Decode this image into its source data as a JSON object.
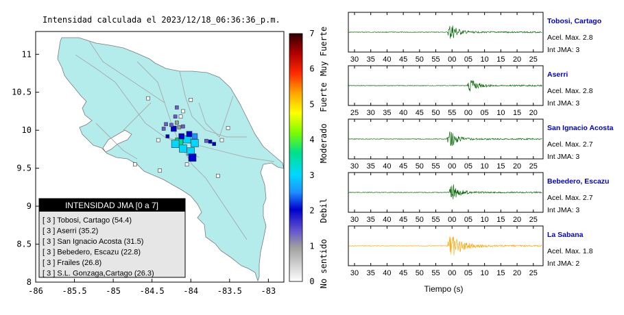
{
  "map": {
    "title": "Intensidad calculada el 2023/12/18_06:36:36_p.m.",
    "x_ticks": [
      "-86",
      "-85.5",
      "-85",
      "-84.5",
      "-84",
      "-83.5",
      "-83"
    ],
    "y_ticks": [
      "8",
      "8.5",
      "9",
      "9.5",
      "10",
      "10.5",
      "11"
    ],
    "xlim": [
      -86.0,
      -82.8
    ],
    "ylim": [
      8.0,
      11.3
    ],
    "legend": {
      "header": "INTENSIDAD JMA [0 a 7]",
      "entries": [
        "[ 3 ]  Tobosi, Cartago (54.4)",
        "[ 3 ]  Aserri (35.2)",
        "[ 3 ]  San Ignacio Acosta (31.5)",
        "[ 3 ]  Bebedero, Escazu (22.8)",
        "[ 3 ]  Frailes (26.8)",
        "[ 3 ]  S.L. Gonzaga,Cartago (26.3)"
      ]
    },
    "colorbar": {
      "ticks": [
        "0",
        "1",
        "2",
        "3",
        "4",
        "5",
        "6",
        "7"
      ],
      "labels": [
        {
          "text": "No sentido",
          "at": 0.5
        },
        {
          "text": "Debil",
          "at": 2.0
        },
        {
          "text": "Moderado",
          "at": 3.9
        },
        {
          "text": "Fuerte",
          "at": 5.2
        },
        {
          "text": "Muy Fuerte",
          "at": 6.5
        }
      ]
    },
    "land_color": "#b4ecec",
    "stations": [
      {
        "lon": -84.15,
        "lat": 9.85,
        "intensity": 3.6,
        "size": 2
      },
      {
        "lon": -84.05,
        "lat": 9.88,
        "intensity": 3.1,
        "size": 2
      },
      {
        "lon": -83.95,
        "lat": 9.83,
        "intensity": 3.3,
        "size": 2
      },
      {
        "lon": -84.1,
        "lat": 9.76,
        "intensity": 3.0,
        "size": 2
      },
      {
        "lon": -84.0,
        "lat": 9.72,
        "intensity": 3.4,
        "size": 2
      },
      {
        "lon": -83.98,
        "lat": 9.64,
        "intensity": 2.0,
        "size": 2
      },
      {
        "lon": -84.2,
        "lat": 9.82,
        "intensity": 3.2,
        "size": 2
      },
      {
        "lon": -84.22,
        "lat": 10.02,
        "intensity": 2.1,
        "size": 1
      },
      {
        "lon": -84.02,
        "lat": 9.95,
        "intensity": 2.1,
        "size": 1
      },
      {
        "lon": -84.12,
        "lat": 9.92,
        "intensity": 2.0,
        "size": 1
      },
      {
        "lon": -83.95,
        "lat": 9.92,
        "intensity": 2.5,
        "size": 1
      },
      {
        "lon": -84.3,
        "lat": 9.92,
        "intensity": 2.2,
        "size": 0
      },
      {
        "lon": -84.32,
        "lat": 10.08,
        "intensity": 1.6,
        "size": 0
      },
      {
        "lon": -84.35,
        "lat": 10.02,
        "intensity": 1.8,
        "size": 0
      },
      {
        "lon": -84.25,
        "lat": 10.07,
        "intensity": 1.5,
        "size": 0
      },
      {
        "lon": -84.18,
        "lat": 10.1,
        "intensity": 1.2,
        "size": 0
      },
      {
        "lon": -84.15,
        "lat": 10.04,
        "intensity": 1.3,
        "size": 0
      },
      {
        "lon": -84.1,
        "lat": 10.05,
        "intensity": 1.8,
        "size": 0
      },
      {
        "lon": -84.2,
        "lat": 10.18,
        "intensity": 1.7,
        "size": 0
      },
      {
        "lon": -84.13,
        "lat": 10.18,
        "intensity": 0.6,
        "size": 0
      },
      {
        "lon": -84.18,
        "lat": 10.3,
        "intensity": 1.9,
        "size": 0
      },
      {
        "lon": -84.1,
        "lat": 10.25,
        "intensity": 0.5,
        "size": 0
      },
      {
        "lon": -84.0,
        "lat": 10.4,
        "intensity": 0.4,
        "size": 0
      },
      {
        "lon": -83.8,
        "lat": 9.86,
        "intensity": 1.6,
        "size": 0
      },
      {
        "lon": -83.75,
        "lat": 9.85,
        "intensity": 2.4,
        "size": 0
      },
      {
        "lon": -83.7,
        "lat": 9.82,
        "intensity": 2.0,
        "size": 0
      },
      {
        "lon": -83.6,
        "lat": 9.87,
        "intensity": 0.5,
        "size": 0
      },
      {
        "lon": -83.52,
        "lat": 10.03,
        "intensity": 0.3,
        "size": 0
      },
      {
        "lon": -84.42,
        "lat": 9.87,
        "intensity": 0.7,
        "size": 0
      },
      {
        "lon": -84.55,
        "lat": 10.42,
        "intensity": 0.3,
        "size": 0
      },
      {
        "lon": -84.72,
        "lat": 9.55,
        "intensity": 0.3,
        "size": 0
      },
      {
        "lon": -84.4,
        "lat": 9.47,
        "intensity": 0.3,
        "size": 0
      },
      {
        "lon": -84.05,
        "lat": 9.55,
        "intensity": 0.3,
        "size": 0
      },
      {
        "lon": -83.65,
        "lat": 9.4,
        "intensity": 0.3,
        "size": 0
      }
    ]
  },
  "waveforms": {
    "xlabel": "Tiempo (s)",
    "traces": [
      {
        "station": "Tobosi, Cartago",
        "accel": "Acel. Max. 2.8",
        "jma": "Int JMA: 3",
        "ticks": [
          "30",
          "35",
          "40",
          "45",
          "50",
          "55",
          "00",
          "05",
          "10",
          "15",
          "20",
          "25"
        ],
        "tick_start": 30,
        "onset": 58.5,
        "amp": 1.0,
        "color": "#006400",
        "name_color": "#0000cc"
      },
      {
        "station": "Aserri",
        "accel": "Acel. Max. 2.8",
        "jma": "Int JMA: 3",
        "ticks": [
          "25",
          "30",
          "35",
          "40",
          "45",
          "50",
          "55",
          "00",
          "05",
          "10",
          "15",
          "20"
        ],
        "tick_start": 25,
        "onset": 59.5,
        "amp": 0.9,
        "color": "#006400",
        "name_color": "#0000cc"
      },
      {
        "station": "San Ignacio Acosta",
        "accel": "Acel. Max. 2.7",
        "jma": "Int JMA: 3",
        "ticks": [
          "30",
          "35",
          "40",
          "45",
          "50",
          "55",
          "00",
          "05",
          "10",
          "15",
          "20",
          "25"
        ],
        "tick_start": 30,
        "onset": 58.3,
        "amp": 0.95,
        "color": "#006400",
        "name_color": "#0000cc"
      },
      {
        "station": "Bebedero, Escazu",
        "accel": "Acel. Max. 2.7",
        "jma": "Int JMA: 3",
        "ticks": [
          "30",
          "35",
          "40",
          "45",
          "50",
          "55",
          "00",
          "05",
          "10",
          "15",
          "20",
          "25"
        ],
        "tick_start": 30,
        "onset": 59.0,
        "amp": 0.95,
        "color": "#006400",
        "name_color": "#0000cc"
      },
      {
        "station": "La Sabana",
        "accel": "Acel. Max. 1.8",
        "jma": "Int JMA: 2",
        "ticks": [
          "30",
          "35",
          "40",
          "45",
          "50",
          "55",
          "00",
          "05",
          "10",
          "15",
          "20",
          "25"
        ],
        "tick_start": 30,
        "onset": 58.5,
        "amp": 1.0,
        "color": "#ffa500",
        "name_color": "#0000cc"
      }
    ]
  }
}
